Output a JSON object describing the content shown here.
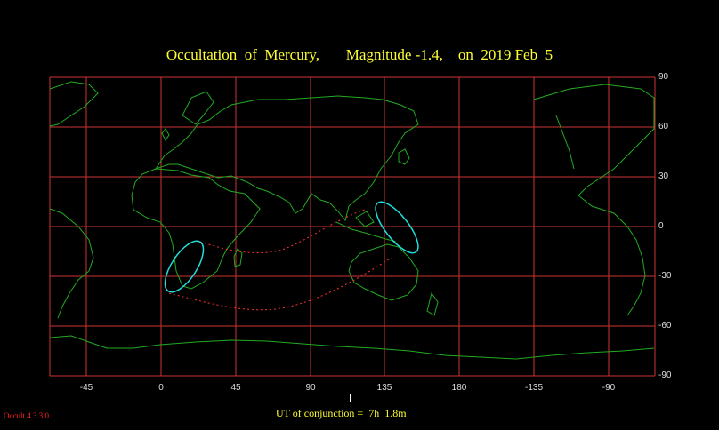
{
  "title": "Occultation  of  Mercury,       Magnitude -1.4,    on  2019 Feb  5",
  "map": {
    "longitude_labels": [
      "-45",
      "0",
      "45",
      "90",
      "135",
      "180",
      "-135",
      "-90"
    ],
    "latitude_labels": [
      "90",
      "60",
      "30",
      "0",
      "-30",
      "-60",
      "-90"
    ],
    "colors": {
      "grid": "#cc3333",
      "coast": "#22aa22",
      "path": "#ff3333",
      "limit": "#22dddd",
      "title": "#ffff33"
    }
  },
  "footer": {
    "conjunction_text": "UT of conjunction =  7h  1.8m",
    "version": "Occult 4.3.3.0"
  }
}
